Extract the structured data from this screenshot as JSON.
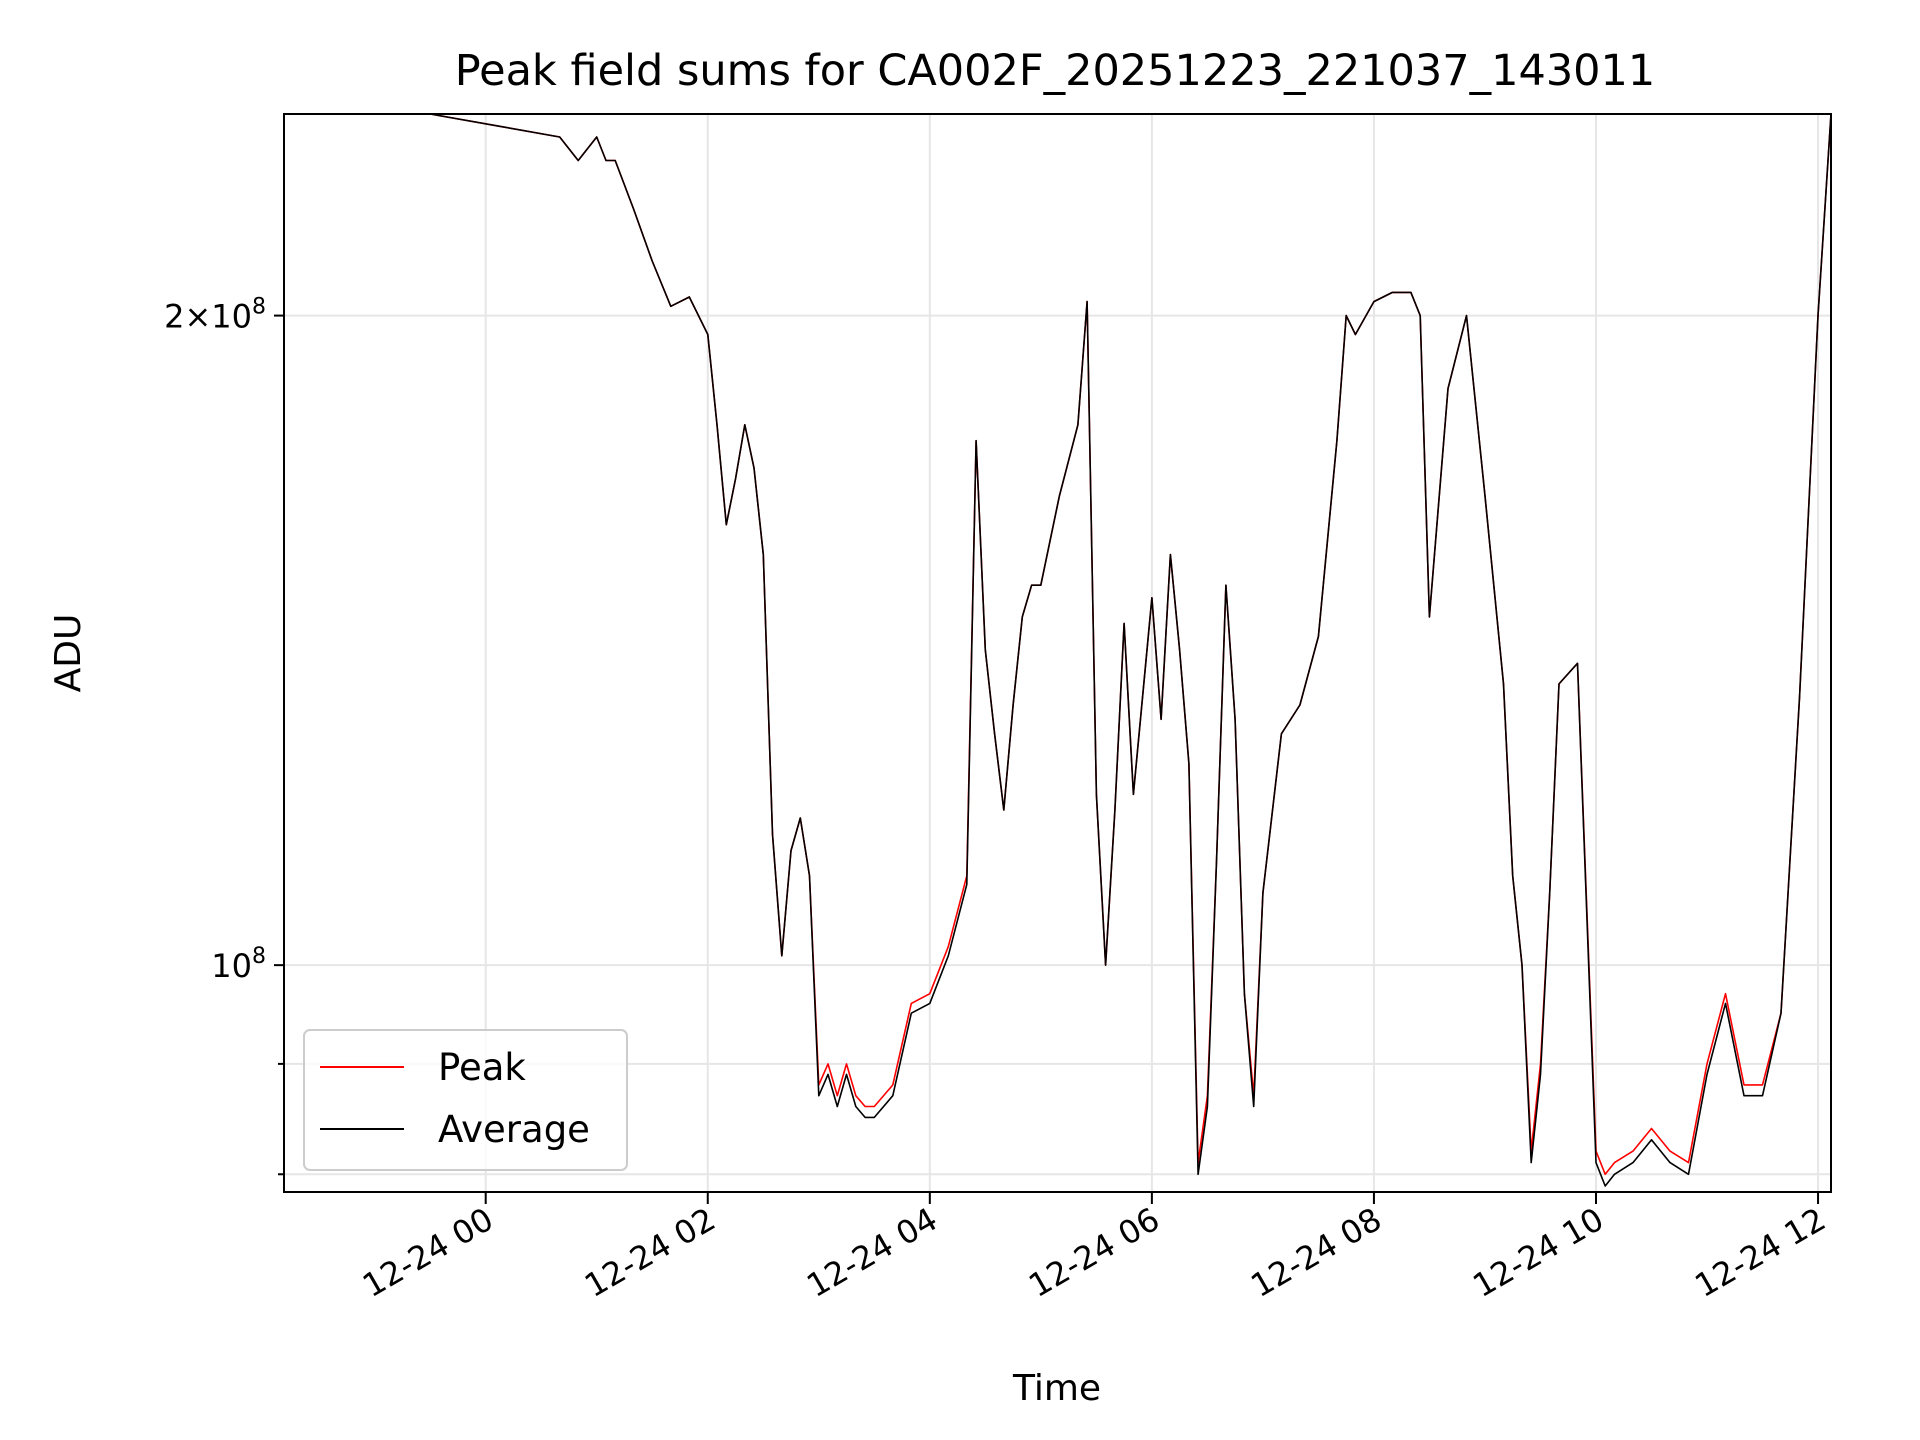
{
  "chart_data": {
    "type": "line",
    "title": "Peak field sums for CA002F_20251223_221037_143011",
    "xlabel": "Time",
    "ylabel": "ADU",
    "x_scale": "time",
    "y_scale": "log",
    "xlim": [
      "2025-12-23 22:11",
      "2025-12-24 12:07"
    ],
    "ylim": [
      78500000,
      248000000
    ],
    "xticks": [
      "12-24 00",
      "12-24 02",
      "12-24 04",
      "12-24 06",
      "12-24 08",
      "12-24 10",
      "12-24 12"
    ],
    "yticks": [
      {
        "value": 80000000,
        "label": ""
      },
      {
        "value": 90000000,
        "label": ""
      },
      {
        "value": 100000000,
        "label": "10^8"
      },
      {
        "value": 200000000,
        "label": "2×10^8"
      }
    ],
    "grid": true,
    "legend_position": "lower-left",
    "series": [
      {
        "name": "Peak",
        "color": "#ff0000",
        "x": [
          "2025-12-23 22:11",
          "2025-12-23 23:30",
          "2025-12-24 00:40",
          "2025-12-24 00:50",
          "2025-12-24 01:00",
          "2025-12-24 01:05",
          "2025-12-24 01:10",
          "2025-12-24 01:20",
          "2025-12-24 01:30",
          "2025-12-24 01:40",
          "2025-12-24 01:50",
          "2025-12-24 02:00",
          "2025-12-24 02:05",
          "2025-12-24 02:10",
          "2025-12-24 02:15",
          "2025-12-24 02:20",
          "2025-12-24 02:25",
          "2025-12-24 02:30",
          "2025-12-24 02:35",
          "2025-12-24 02:40",
          "2025-12-24 02:45",
          "2025-12-24 02:50",
          "2025-12-24 02:55",
          "2025-12-24 03:00",
          "2025-12-24 03:05",
          "2025-12-24 03:10",
          "2025-12-24 03:15",
          "2025-12-24 03:20",
          "2025-12-24 03:25",
          "2025-12-24 03:30",
          "2025-12-24 03:40",
          "2025-12-24 03:50",
          "2025-12-24 04:00",
          "2025-12-24 04:10",
          "2025-12-24 04:20",
          "2025-12-24 04:25",
          "2025-12-24 04:30",
          "2025-12-24 04:35",
          "2025-12-24 04:40",
          "2025-12-24 04:45",
          "2025-12-24 04:50",
          "2025-12-24 04:55",
          "2025-12-24 05:00",
          "2025-12-24 05:10",
          "2025-12-24 05:20",
          "2025-12-24 05:25",
          "2025-12-24 05:30",
          "2025-12-24 05:35",
          "2025-12-24 05:40",
          "2025-12-24 05:45",
          "2025-12-24 05:50",
          "2025-12-24 06:00",
          "2025-12-24 06:05",
          "2025-12-24 06:10",
          "2025-12-24 06:15",
          "2025-12-24 06:20",
          "2025-12-24 06:25",
          "2025-12-24 06:30",
          "2025-12-24 06:35",
          "2025-12-24 06:40",
          "2025-12-24 06:45",
          "2025-12-24 06:50",
          "2025-12-24 06:55",
          "2025-12-24 07:00",
          "2025-12-24 07:10",
          "2025-12-24 07:20",
          "2025-12-24 07:30",
          "2025-12-24 07:40",
          "2025-12-24 07:45",
          "2025-12-24 07:50",
          "2025-12-24 08:00",
          "2025-12-24 08:10",
          "2025-12-24 08:20",
          "2025-12-24 08:25",
          "2025-12-24 08:30",
          "2025-12-24 08:40",
          "2025-12-24 08:50",
          "2025-12-24 09:00",
          "2025-12-24 09:10",
          "2025-12-24 09:15",
          "2025-12-24 09:20",
          "2025-12-24 09:25",
          "2025-12-24 09:30",
          "2025-12-24 09:35",
          "2025-12-24 09:40",
          "2025-12-24 09:50",
          "2025-12-24 10:00",
          "2025-12-24 10:05",
          "2025-12-24 10:10",
          "2025-12-24 10:20",
          "2025-12-24 10:30",
          "2025-12-24 10:40",
          "2025-12-24 10:50",
          "2025-12-24 11:00",
          "2025-12-24 11:10",
          "2025-12-24 11:20",
          "2025-12-24 11:30",
          "2025-12-24 11:40",
          "2025-12-24 11:50",
          "2025-12-24 12:00",
          "2025-12-24 12:07"
        ],
        "values": [
          248000000,
          248000000,
          242000000,
          236000000,
          242000000,
          236000000,
          236000000,
          224000000,
          212000000,
          202000000,
          204000000,
          196000000,
          178000000,
          160000000,
          168000000,
          178000000,
          170000000,
          155000000,
          115000000,
          101000000,
          113000000,
          117000000,
          110000000,
          88000000,
          90000000,
          87000000,
          90000000,
          87000000,
          86000000,
          86000000,
          88000000,
          96000000,
          97000000,
          102000000,
          110000000,
          175000000,
          140000000,
          128000000,
          118000000,
          132000000,
          145000000,
          150000000,
          150000000,
          165000000,
          178000000,
          203000000,
          120000000,
          100000000,
          118000000,
          144000000,
          120000000,
          148000000,
          130000000,
          155000000,
          140000000,
          124000000,
          81000000,
          87000000,
          112000000,
          150000000,
          130000000,
          97000000,
          87000000,
          108000000,
          128000000,
          132000000,
          142000000,
          175000000,
          200000000,
          196000000,
          203000000,
          205000000,
          205000000,
          200000000,
          145000000,
          185000000,
          200000000,
          165000000,
          135000000,
          110000000,
          100000000,
          82000000,
          90000000,
          108000000,
          135000000,
          138000000,
          82000000,
          80000000,
          81000000,
          82000000,
          84000000,
          82000000,
          81000000,
          90000000,
          97000000,
          88000000,
          88000000,
          95000000,
          133000000,
          200000000,
          248000000
        ]
      },
      {
        "name": "Average",
        "color": "#000000",
        "x": [
          "2025-12-23 22:11",
          "2025-12-23 23:30",
          "2025-12-24 00:40",
          "2025-12-24 00:50",
          "2025-12-24 01:00",
          "2025-12-24 01:05",
          "2025-12-24 01:10",
          "2025-12-24 01:20",
          "2025-12-24 01:30",
          "2025-12-24 01:40",
          "2025-12-24 01:50",
          "2025-12-24 02:00",
          "2025-12-24 02:05",
          "2025-12-24 02:10",
          "2025-12-24 02:15",
          "2025-12-24 02:20",
          "2025-12-24 02:25",
          "2025-12-24 02:30",
          "2025-12-24 02:35",
          "2025-12-24 02:40",
          "2025-12-24 02:45",
          "2025-12-24 02:50",
          "2025-12-24 02:55",
          "2025-12-24 03:00",
          "2025-12-24 03:05",
          "2025-12-24 03:10",
          "2025-12-24 03:15",
          "2025-12-24 03:20",
          "2025-12-24 03:25",
          "2025-12-24 03:30",
          "2025-12-24 03:40",
          "2025-12-24 03:50",
          "2025-12-24 04:00",
          "2025-12-24 04:10",
          "2025-12-24 04:20",
          "2025-12-24 04:25",
          "2025-12-24 04:30",
          "2025-12-24 04:35",
          "2025-12-24 04:40",
          "2025-12-24 04:45",
          "2025-12-24 04:50",
          "2025-12-24 04:55",
          "2025-12-24 05:00",
          "2025-12-24 05:10",
          "2025-12-24 05:20",
          "2025-12-24 05:25",
          "2025-12-24 05:30",
          "2025-12-24 05:35",
          "2025-12-24 05:40",
          "2025-12-24 05:45",
          "2025-12-24 05:50",
          "2025-12-24 06:00",
          "2025-12-24 06:05",
          "2025-12-24 06:10",
          "2025-12-24 06:15",
          "2025-12-24 06:20",
          "2025-12-24 06:25",
          "2025-12-24 06:30",
          "2025-12-24 06:35",
          "2025-12-24 06:40",
          "2025-12-24 06:45",
          "2025-12-24 06:50",
          "2025-12-24 06:55",
          "2025-12-24 07:00",
          "2025-12-24 07:10",
          "2025-12-24 07:20",
          "2025-12-24 07:30",
          "2025-12-24 07:40",
          "2025-12-24 07:45",
          "2025-12-24 07:50",
          "2025-12-24 08:00",
          "2025-12-24 08:10",
          "2025-12-24 08:20",
          "2025-12-24 08:25",
          "2025-12-24 08:30",
          "2025-12-24 08:40",
          "2025-12-24 08:50",
          "2025-12-24 09:00",
          "2025-12-24 09:10",
          "2025-12-24 09:15",
          "2025-12-24 09:20",
          "2025-12-24 09:25",
          "2025-12-24 09:30",
          "2025-12-24 09:35",
          "2025-12-24 09:40",
          "2025-12-24 09:50",
          "2025-12-24 10:00",
          "2025-12-24 10:05",
          "2025-12-24 10:10",
          "2025-12-24 10:20",
          "2025-12-24 10:30",
          "2025-12-24 10:40",
          "2025-12-24 10:50",
          "2025-12-24 11:00",
          "2025-12-24 11:10",
          "2025-12-24 11:20",
          "2025-12-24 11:30",
          "2025-12-24 11:40",
          "2025-12-24 11:50",
          "2025-12-24 12:00",
          "2025-12-24 12:07"
        ],
        "values": [
          248000000,
          248000000,
          242000000,
          236000000,
          242000000,
          236000000,
          236000000,
          224000000,
          212000000,
          202000000,
          204000000,
          196000000,
          178000000,
          160000000,
          168000000,
          178000000,
          170000000,
          155000000,
          115000000,
          101000000,
          113000000,
          117000000,
          110000000,
          87000000,
          89000000,
          86000000,
          89000000,
          86000000,
          85000000,
          85000000,
          87000000,
          95000000,
          96000000,
          101000000,
          109000000,
          175000000,
          140000000,
          128000000,
          118000000,
          132000000,
          145000000,
          150000000,
          150000000,
          165000000,
          178000000,
          203000000,
          120000000,
          100000000,
          118000000,
          144000000,
          120000000,
          148000000,
          130000000,
          155000000,
          140000000,
          124000000,
          80000000,
          86000000,
          112000000,
          150000000,
          130000000,
          97000000,
          86000000,
          108000000,
          128000000,
          132000000,
          142000000,
          175000000,
          200000000,
          196000000,
          203000000,
          205000000,
          205000000,
          200000000,
          145000000,
          185000000,
          200000000,
          165000000,
          135000000,
          110000000,
          100000000,
          81000000,
          89000000,
          108000000,
          135000000,
          138000000,
          81000000,
          79000000,
          80000000,
          81000000,
          83000000,
          81000000,
          80000000,
          89000000,
          96000000,
          87000000,
          87000000,
          95000000,
          133000000,
          200000000,
          248000000
        ]
      }
    ]
  }
}
